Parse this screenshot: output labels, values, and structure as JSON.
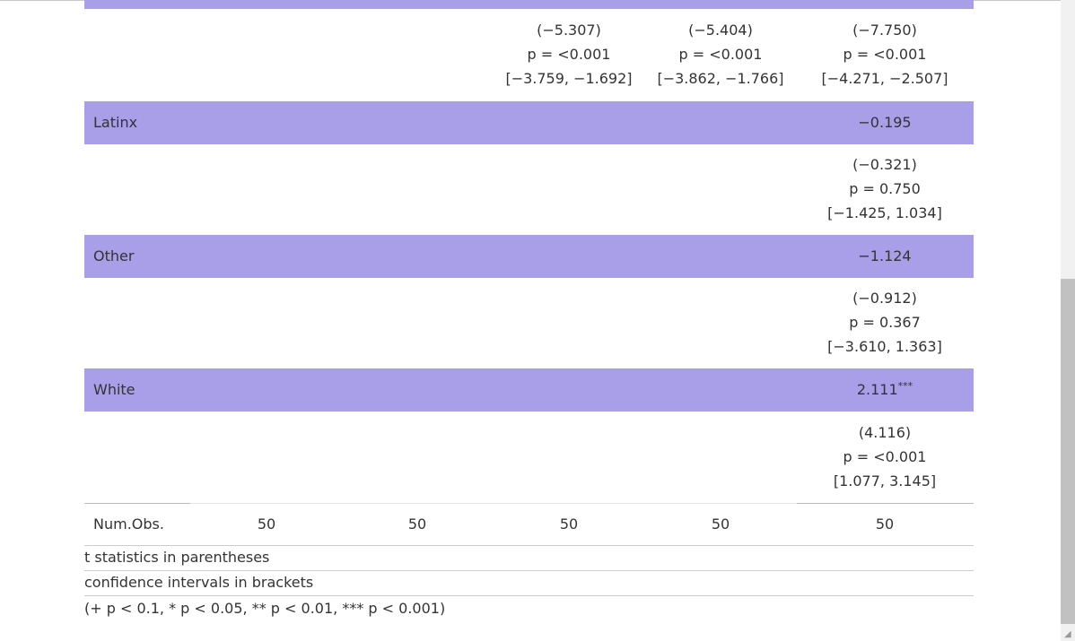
{
  "table": {
    "first_stats": {
      "c3": [
        "(−5.307)",
        "p = <0.001",
        "[−3.759, −1.692]"
      ],
      "c4": [
        "(−5.404)",
        "p = <0.001",
        "[−3.862, −1.766]"
      ],
      "c5": [
        "(−7.750)",
        "p = <0.001",
        "[−4.271, −2.507]"
      ]
    },
    "rows": [
      {
        "label": "Latinx",
        "coef": "−0.195",
        "stars": "",
        "stats": [
          "(−0.321)",
          "p = 0.750",
          "[−1.425, 1.034]"
        ]
      },
      {
        "label": "Other",
        "coef": "−1.124",
        "stars": "",
        "stats": [
          "(−0.912)",
          "p = 0.367",
          "[−3.610, 1.363]"
        ]
      },
      {
        "label": "White",
        "coef": "2.111",
        "stars": "***",
        "stats": [
          "(4.116)",
          "p = <0.001",
          "[1.077, 3.145]"
        ]
      }
    ],
    "num_obs": {
      "label": "Num.Obs.",
      "values": [
        "50",
        "50",
        "50",
        "50",
        "50"
      ]
    }
  },
  "notes": [
    "t statistics in parentheses",
    "confidence intervals in brackets",
    "(+ p < 0.1, * p < 0.05, ** p < 0.01, *** p < 0.001)"
  ],
  "colors": {
    "band": "#a99ee8",
    "text": "#333333"
  }
}
